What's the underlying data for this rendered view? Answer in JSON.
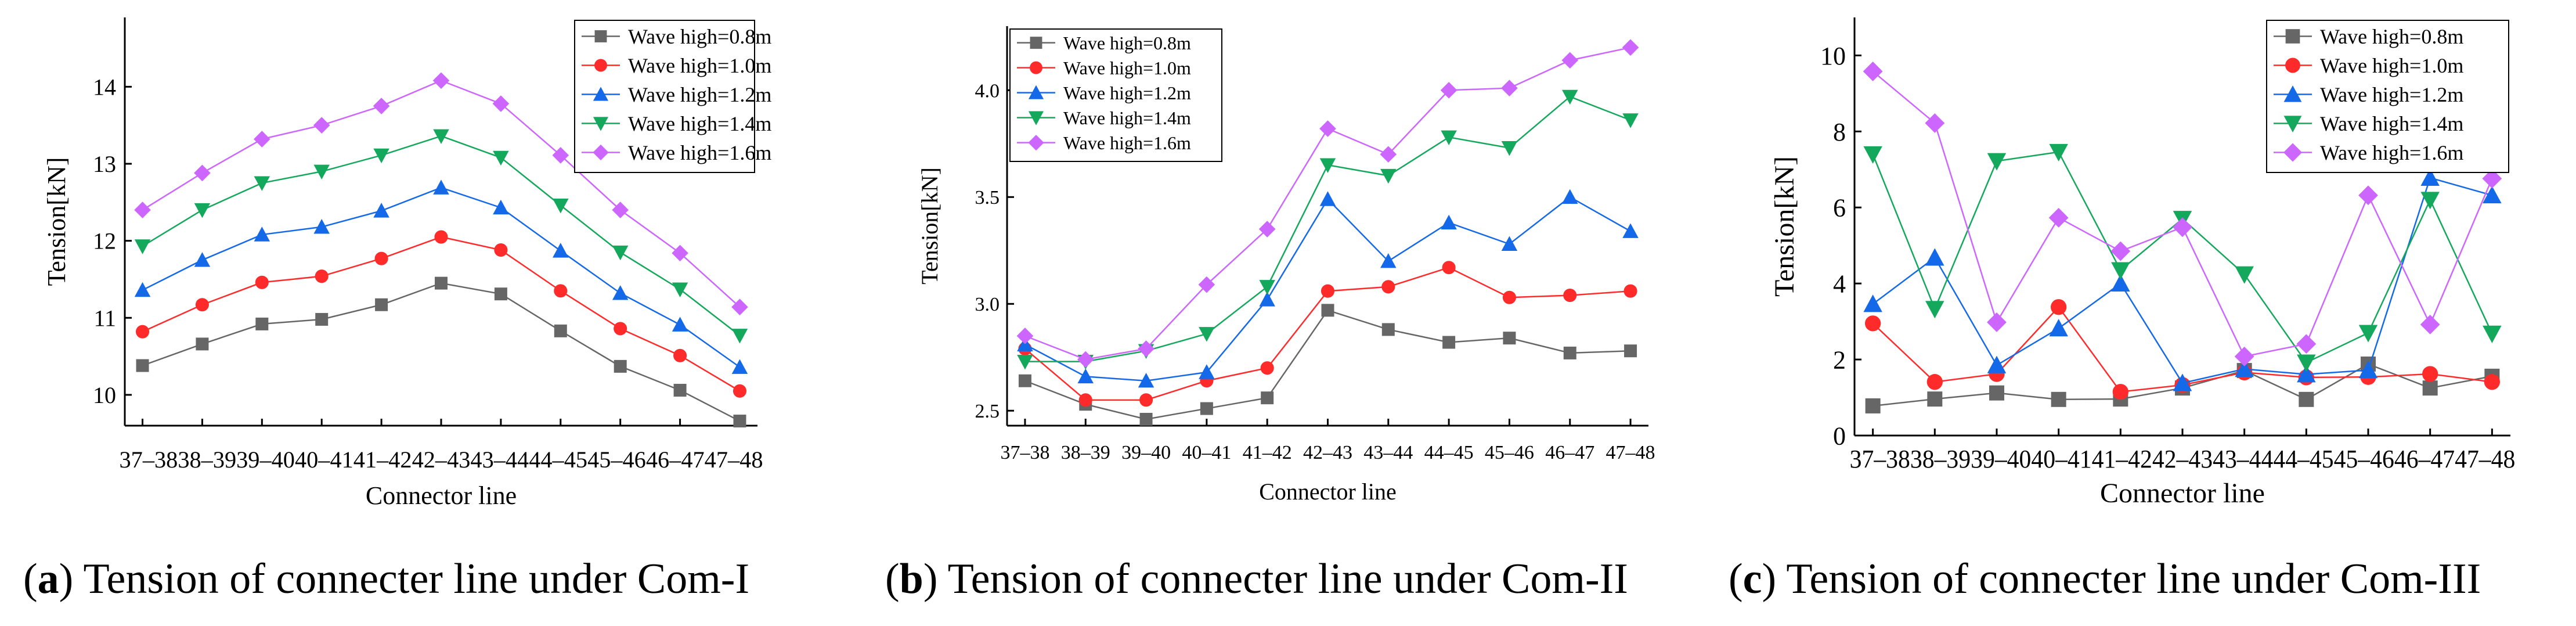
{
  "chart_data": [
    {
      "type": "line",
      "title": "",
      "xlabel": "Connector line",
      "ylabel": "Tension[kN]",
      "categories": [
        "37–38",
        "38–39",
        "39–40",
        "40–41",
        "41–42",
        "42–43",
        "43–44",
        "44–45",
        "45–46",
        "46–47",
        "47–48"
      ],
      "tick_labels": [
        "37–3838–3939–4040–4141–4242–4343–4444–4545–4646–4747–48"
      ],
      "ylim": [
        9.6,
        14.9
      ],
      "yticks": [
        10,
        11,
        12,
        13,
        14
      ],
      "ytick_labels": [
        "10",
        "11",
        "12",
        "13",
        "14"
      ],
      "legend_position": "top-right",
      "grid": false,
      "series": [
        {
          "name": "Wave high=0.8m",
          "color": "#666666",
          "marker": "square",
          "values": [
            10.38,
            10.66,
            10.92,
            10.98,
            11.17,
            11.45,
            11.31,
            10.83,
            10.37,
            10.06,
            9.66
          ]
        },
        {
          "name": "Wave high=1.0m",
          "color": "#ff2a2a",
          "marker": "circle",
          "values": [
            10.82,
            11.17,
            11.46,
            11.54,
            11.77,
            12.05,
            11.88,
            11.35,
            10.86,
            10.51,
            10.05
          ]
        },
        {
          "name": "Wave high=1.2m",
          "color": "#1469e8",
          "marker": "triangle-up",
          "values": [
            11.36,
            11.75,
            12.08,
            12.18,
            12.39,
            12.69,
            12.43,
            11.87,
            11.32,
            10.91,
            10.36
          ]
        },
        {
          "name": "Wave high=1.4m",
          "color": "#13a85c",
          "marker": "triangle-down",
          "values": [
            11.93,
            12.4,
            12.75,
            12.9,
            13.11,
            13.36,
            13.08,
            12.46,
            11.85,
            11.37,
            10.77
          ]
        },
        {
          "name": "Wave high=1.6m",
          "color": "#cc66ff",
          "marker": "diamond",
          "values": [
            12.4,
            12.88,
            13.32,
            13.5,
            13.75,
            14.08,
            13.78,
            13.11,
            12.4,
            11.84,
            11.14
          ]
        }
      ]
    },
    {
      "type": "line",
      "title": "",
      "xlabel": "Connector line",
      "ylabel": "Tension[kN]",
      "categories": [
        "37–38",
        "38–39",
        "39–40",
        "40–41",
        "41–42",
        "42–43",
        "43–44",
        "44–45",
        "45–46",
        "46–47",
        "47–48"
      ],
      "tick_labels": [
        "37–38",
        "38–39",
        "39–40",
        "40–41",
        "41–42",
        "42–43",
        "43–44",
        "44–45",
        "45–46",
        "46–47",
        "47–48"
      ],
      "ylim": [
        2.43,
        4.3
      ],
      "yticks": [
        2.5,
        3.0,
        3.5,
        4.0
      ],
      "ytick_labels": [
        "2.5",
        "3.0",
        "3.5",
        "4.0"
      ],
      "legend_position": "top-left",
      "grid": false,
      "series": [
        {
          "name": "Wave high=0.8m",
          "color": "#666666",
          "marker": "square",
          "values": [
            2.64,
            2.53,
            2.46,
            2.51,
            2.56,
            2.97,
            2.88,
            2.82,
            2.84,
            2.77,
            2.78
          ]
        },
        {
          "name": "Wave high=1.0m",
          "color": "#ff2a2a",
          "marker": "circle",
          "values": [
            2.79,
            2.55,
            2.55,
            2.64,
            2.7,
            3.06,
            3.08,
            3.17,
            3.03,
            3.04,
            3.06
          ]
        },
        {
          "name": "Wave high=1.2m",
          "color": "#1469e8",
          "marker": "triangle-up",
          "values": [
            2.81,
            2.66,
            2.64,
            2.68,
            3.02,
            3.49,
            3.2,
            3.38,
            3.28,
            3.5,
            3.34
          ]
        },
        {
          "name": "Wave high=1.4m",
          "color": "#13a85c",
          "marker": "triangle-down",
          "values": [
            2.73,
            2.73,
            2.78,
            2.86,
            3.08,
            3.65,
            3.6,
            3.78,
            3.73,
            3.97,
            3.86
          ]
        },
        {
          "name": "Wave high=1.6m",
          "color": "#cc66ff",
          "marker": "diamond",
          "values": [
            2.85,
            2.74,
            2.79,
            3.09,
            3.35,
            3.82,
            3.7,
            4.0,
            4.01,
            4.14,
            4.2
          ]
        }
      ]
    },
    {
      "type": "line",
      "title": "",
      "xlabel": "Connector line",
      "ylabel": "Tension[kN]",
      "categories": [
        "37–38",
        "38–39",
        "39–40",
        "40–41",
        "41–42",
        "42–43",
        "43–44",
        "44–45",
        "45–46",
        "46–47",
        "47–48"
      ],
      "tick_labels": [
        "37–3838–3939–4040–4141–4242–4343–4444–4545–4646–4747–48"
      ],
      "ylim": [
        0,
        11
      ],
      "yticks": [
        0,
        2,
        4,
        6,
        8,
        10
      ],
      "ytick_labels": [
        "0",
        "2",
        "4",
        "6",
        "8",
        "10"
      ],
      "legend_position": "top-right",
      "grid": false,
      "series": [
        {
          "name": "Wave high=0.8m",
          "color": "#666666",
          "marker": "square",
          "values": [
            0.78,
            0.96,
            1.12,
            0.95,
            0.96,
            1.25,
            1.71,
            0.95,
            1.88,
            1.25,
            1.56
          ]
        },
        {
          "name": "Wave high=1.0m",
          "color": "#ff2a2a",
          "marker": "circle",
          "values": [
            2.95,
            1.41,
            1.62,
            3.38,
            1.15,
            1.33,
            1.66,
            1.53,
            1.54,
            1.62,
            1.41
          ]
        },
        {
          "name": "Wave high=1.2m",
          "color": "#1469e8",
          "marker": "triangle-up",
          "values": [
            3.46,
            4.68,
            1.85,
            2.82,
            4.0,
            1.38,
            1.75,
            1.61,
            1.72,
            6.78,
            6.32
          ]
        },
        {
          "name": "Wave high=1.4m",
          "color": "#13a85c",
          "marker": "triangle-down",
          "values": [
            7.4,
            3.33,
            7.22,
            7.46,
            4.35,
            5.7,
            4.24,
            1.92,
            2.7,
            6.2,
            2.68
          ]
        },
        {
          "name": "Wave high=1.6m",
          "color": "#cc66ff",
          "marker": "diamond",
          "values": [
            9.58,
            8.22,
            2.98,
            5.73,
            4.85,
            5.48,
            2.08,
            2.41,
            6.32,
            2.92,
            6.76
          ]
        }
      ]
    }
  ],
  "captions": [
    {
      "letter": "a",
      "text": " Tension of connecter line under Com-I"
    },
    {
      "letter": "b",
      "text": " Tension of connecter line under Com-II"
    },
    {
      "letter": "c",
      "text": " Tension of connecter line under Com-III"
    }
  ]
}
